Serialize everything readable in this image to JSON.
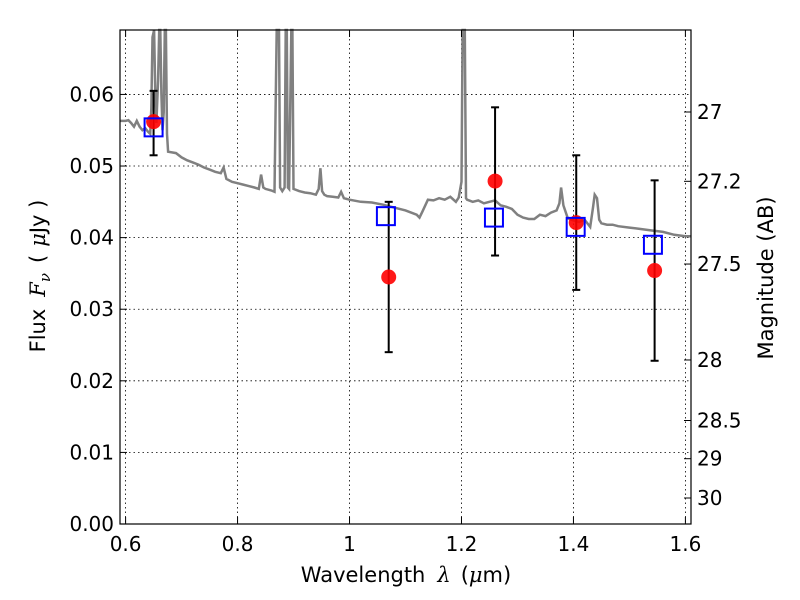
{
  "chart_data": {
    "type": "scatter",
    "xlabel_text": "Wavelength",
    "xlabel_symbol": "λ",
    "xlabel_unit_open": "(",
    "xlabel_unit_mu": "μ",
    "xlabel_unit_rest": "m)",
    "ylabel_text": "Flux",
    "ylabel_symbol": "F",
    "ylabel_sub": "ν",
    "ylabel_unit_open": "(",
    "ylabel_unit_mu": "μ",
    "ylabel_unit_rest": "Jy )",
    "y2label": "Magnitude (AB)",
    "xlim": [
      0.59,
      1.61
    ],
    "ylim": [
      0.0,
      0.069
    ],
    "grid": true,
    "x_ticks": [
      {
        "value": 0.6,
        "label": "0.6"
      },
      {
        "value": 0.8,
        "label": "0.8"
      },
      {
        "value": 1.0,
        "label": "1"
      },
      {
        "value": 1.2,
        "label": "1.2"
      },
      {
        "value": 1.4,
        "label": "1.4"
      },
      {
        "value": 1.6,
        "label": "1.6"
      }
    ],
    "y_ticks": [
      {
        "value": 0.0,
        "label": "0.00"
      },
      {
        "value": 0.01,
        "label": "0.01"
      },
      {
        "value": 0.02,
        "label": "0.02"
      },
      {
        "value": 0.03,
        "label": "0.03"
      },
      {
        "value": 0.04,
        "label": "0.04"
      },
      {
        "value": 0.05,
        "label": "0.05"
      },
      {
        "value": 0.06,
        "label": "0.06"
      }
    ],
    "y2_ticks": [
      {
        "mag": 27,
        "label": "27"
      },
      {
        "mag": 27.2,
        "label": "27.2"
      },
      {
        "mag": 27.5,
        "label": "27.5"
      },
      {
        "mag": 28,
        "label": "28"
      },
      {
        "mag": 28.5,
        "label": "28.5"
      },
      {
        "mag": 29,
        "label": "29"
      },
      {
        "mag": 30,
        "label": "30"
      }
    ],
    "model_spectrum": {
      "color": "#808080",
      "points": [
        [
          0.59,
          0.0563
        ],
        [
          0.6,
          0.0563
        ],
        [
          0.605,
          0.0564
        ],
        [
          0.61,
          0.056
        ],
        [
          0.615,
          0.0555
        ],
        [
          0.62,
          0.0563
        ],
        [
          0.625,
          0.0555
        ],
        [
          0.63,
          0.055
        ],
        [
          0.635,
          0.0553
        ],
        [
          0.64,
          0.0548
        ],
        [
          0.644,
          0.0545
        ],
        [
          0.646,
          0.058
        ],
        [
          0.648,
          0.068
        ],
        [
          0.651,
          0.069
        ],
        [
          0.653,
          0.06
        ],
        [
          0.655,
          0.056
        ],
        [
          0.658,
          0.062
        ],
        [
          0.66,
          0.069
        ],
        [
          0.662,
          0.069
        ],
        [
          0.664,
          0.06
        ],
        [
          0.666,
          0.055
        ],
        [
          0.668,
          0.0575
        ],
        [
          0.67,
          0.069
        ],
        [
          0.672,
          0.069
        ],
        [
          0.674,
          0.0545
        ],
        [
          0.676,
          0.052
        ],
        [
          0.69,
          0.0518
        ],
        [
          0.7,
          0.0512
        ],
        [
          0.71,
          0.0508
        ],
        [
          0.72,
          0.0505
        ],
        [
          0.73,
          0.0502
        ],
        [
          0.74,
          0.0498
        ],
        [
          0.75,
          0.0495
        ],
        [
          0.76,
          0.0492
        ],
        [
          0.77,
          0.049
        ],
        [
          0.775,
          0.0498
        ],
        [
          0.78,
          0.0482
        ],
        [
          0.79,
          0.0478
        ],
        [
          0.8,
          0.0476
        ],
        [
          0.81,
          0.0474
        ],
        [
          0.82,
          0.0472
        ],
        [
          0.83,
          0.047
        ],
        [
          0.838,
          0.0468
        ],
        [
          0.842,
          0.0488
        ],
        [
          0.846,
          0.047
        ],
        [
          0.85,
          0.0468
        ],
        [
          0.86,
          0.0466
        ],
        [
          0.866,
          0.0464
        ],
        [
          0.868,
          0.058
        ],
        [
          0.87,
          0.069
        ],
        [
          0.874,
          0.069
        ],
        [
          0.876,
          0.047
        ],
        [
          0.88,
          0.0465
        ],
        [
          0.884,
          0.047
        ],
        [
          0.886,
          0.069
        ],
        [
          0.888,
          0.069
        ],
        [
          0.89,
          0.047
        ],
        [
          0.892,
          0.0468
        ],
        [
          0.896,
          0.069
        ],
        [
          0.898,
          0.069
        ],
        [
          0.9,
          0.0468
        ],
        [
          0.91,
          0.0465
        ],
        [
          0.92,
          0.0463
        ],
        [
          0.93,
          0.0462
        ],
        [
          0.94,
          0.046
        ],
        [
          0.945,
          0.0468
        ],
        [
          0.948,
          0.0497
        ],
        [
          0.951,
          0.0465
        ],
        [
          0.955,
          0.046
        ],
        [
          0.96,
          0.0458
        ],
        [
          0.97,
          0.0457
        ],
        [
          0.98,
          0.0456
        ],
        [
          0.985,
          0.0464
        ],
        [
          0.99,
          0.0455
        ],
        [
          1.0,
          0.0453
        ],
        [
          1.02,
          0.045
        ],
        [
          1.04,
          0.0449
        ],
        [
          1.06,
          0.0446
        ],
        [
          1.08,
          0.0442
        ],
        [
          1.1,
          0.0438
        ],
        [
          1.12,
          0.0432
        ],
        [
          1.125,
          0.0428
        ],
        [
          1.13,
          0.0436
        ],
        [
          1.14,
          0.0453
        ],
        [
          1.15,
          0.0452
        ],
        [
          1.16,
          0.0455
        ],
        [
          1.17,
          0.0453
        ],
        [
          1.18,
          0.0457
        ],
        [
          1.19,
          0.045
        ],
        [
          1.195,
          0.0456
        ],
        [
          1.2,
          0.0478
        ],
        [
          1.202,
          0.069
        ],
        [
          1.206,
          0.069
        ],
        [
          1.208,
          0.0455
        ],
        [
          1.21,
          0.0453
        ],
        [
          1.22,
          0.045
        ],
        [
          1.23,
          0.0452
        ],
        [
          1.24,
          0.0448
        ],
        [
          1.25,
          0.045
        ],
        [
          1.26,
          0.0452
        ],
        [
          1.27,
          0.0445
        ],
        [
          1.28,
          0.0443
        ],
        [
          1.29,
          0.044
        ],
        [
          1.3,
          0.0432
        ],
        [
          1.31,
          0.0428
        ],
        [
          1.32,
          0.0426
        ],
        [
          1.33,
          0.0426
        ],
        [
          1.34,
          0.0432
        ],
        [
          1.35,
          0.043
        ],
        [
          1.36,
          0.0435
        ],
        [
          1.37,
          0.0438
        ],
        [
          1.375,
          0.0448
        ],
        [
          1.378,
          0.047
        ],
        [
          1.382,
          0.0445
        ],
        [
          1.39,
          0.0427
        ],
        [
          1.4,
          0.0424
        ],
        [
          1.41,
          0.0422
        ],
        [
          1.42,
          0.0425
        ],
        [
          1.43,
          0.0415
        ],
        [
          1.435,
          0.0442
        ],
        [
          1.438,
          0.046
        ],
        [
          1.442,
          0.0455
        ],
        [
          1.446,
          0.0425
        ],
        [
          1.45,
          0.042
        ],
        [
          1.46,
          0.0418
        ],
        [
          1.47,
          0.0418
        ],
        [
          1.48,
          0.0416
        ],
        [
          1.5,
          0.0414
        ],
        [
          1.52,
          0.0412
        ],
        [
          1.54,
          0.041
        ],
        [
          1.56,
          0.0408
        ],
        [
          1.58,
          0.0404
        ],
        [
          1.6,
          0.0402
        ],
        [
          1.61,
          0.0402
        ]
      ]
    },
    "observed": {
      "color": "#ff0000",
      "points": [
        {
          "x": 0.65,
          "y": 0.0562,
          "yerr": [
            0.0515,
            0.0605
          ]
        },
        {
          "x": 1.07,
          "y": 0.0345,
          "yerr": [
            0.024,
            0.045
          ]
        },
        {
          "x": 1.26,
          "y": 0.0479,
          "yerr": [
            0.0375,
            0.0582
          ]
        },
        {
          "x": 1.405,
          "y": 0.0421,
          "yerr": [
            0.0327,
            0.0515
          ]
        },
        {
          "x": 1.545,
          "y": 0.0354,
          "yerr": [
            0.0228,
            0.048
          ]
        }
      ]
    },
    "model_photometry": {
      "color": "#0000ff",
      "points": [
        {
          "x": 0.65,
          "y": 0.0554
        },
        {
          "x": 1.065,
          "y": 0.043
        },
        {
          "x": 1.258,
          "y": 0.0428
        },
        {
          "x": 1.404,
          "y": 0.0415
        },
        {
          "x": 1.542,
          "y": 0.039
        }
      ]
    }
  }
}
